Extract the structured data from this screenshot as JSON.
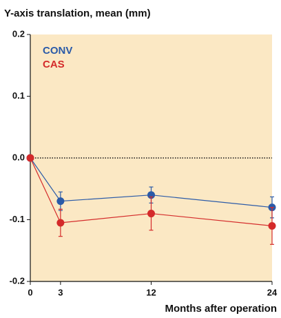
{
  "chart_data": {
    "type": "line",
    "title": "Y-axis translation, mean (mm)",
    "x_label": "Months after operation",
    "x": [
      0,
      3,
      12,
      24
    ],
    "series": [
      {
        "name": "CONV",
        "color": "#2a5aa8",
        "values": [
          0,
          -0.07,
          -0.06,
          -0.08
        ],
        "errors": [
          0,
          0.015,
          0.013,
          0.017
        ]
      },
      {
        "name": "CAS",
        "color": "#d42a2a",
        "values": [
          0,
          -0.105,
          -0.09,
          -0.11
        ],
        "errors": [
          0,
          0.022,
          0.027,
          0.03
        ]
      }
    ],
    "xlim": [
      0,
      24
    ],
    "xticks": [
      0,
      3,
      12,
      24
    ],
    "ylim": [
      -0.2,
      0.2
    ],
    "yticks": [
      0.2,
      0.1,
      {
        "value": 0,
        "label": "0.0"
      },
      -0.1,
      -0.2
    ],
    "reference_line": 0,
    "background": "#fbe8c4",
    "legend": "top-left"
  }
}
